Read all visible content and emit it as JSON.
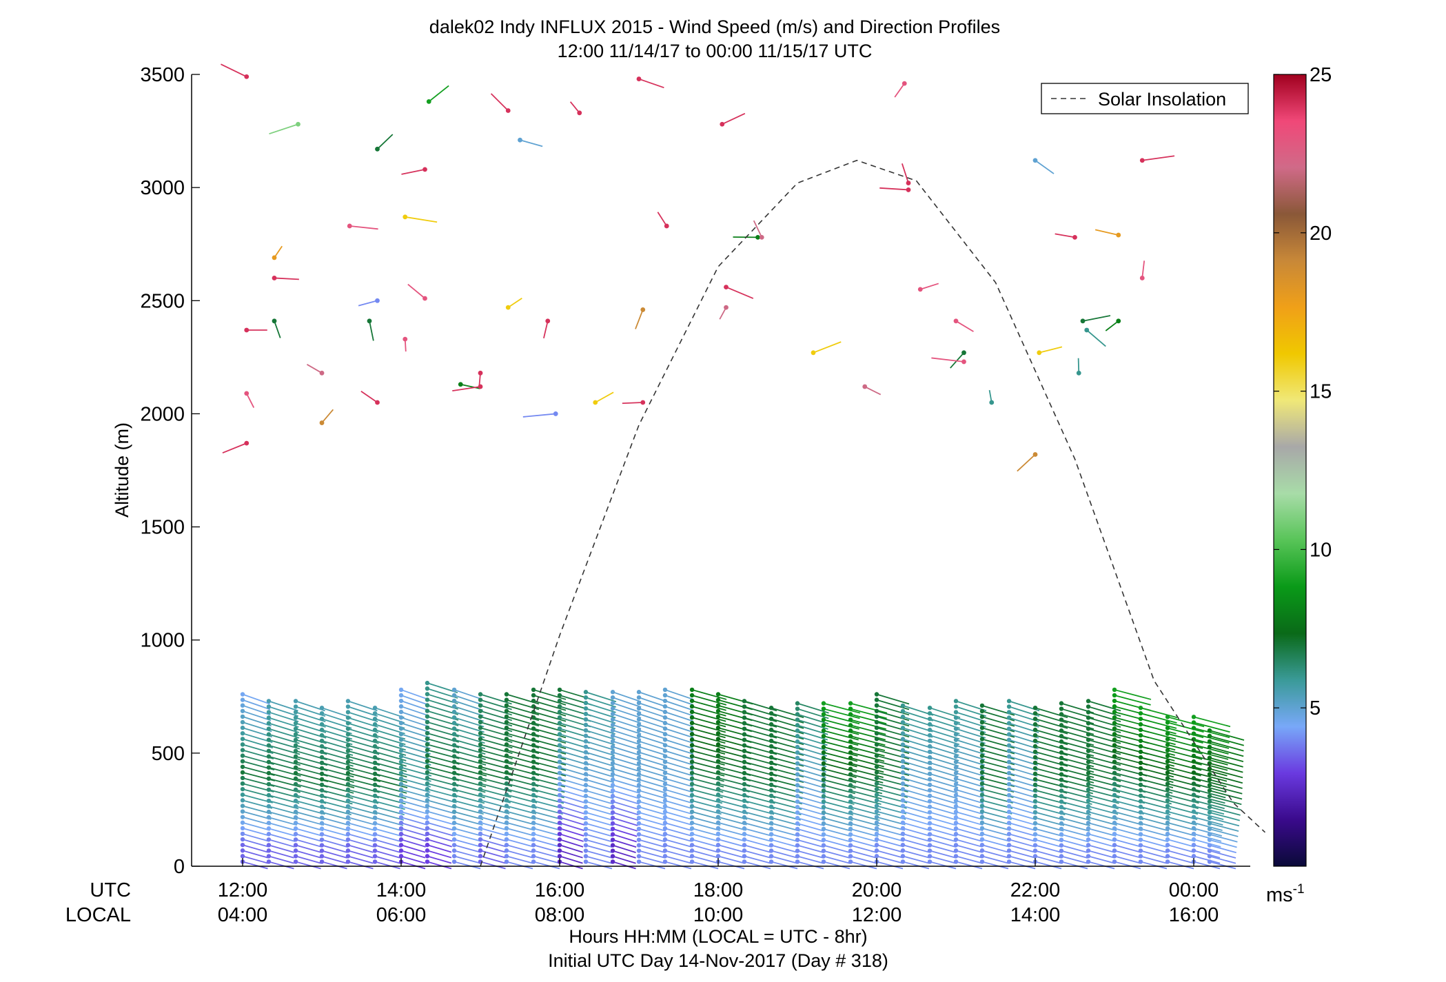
{
  "chart_data": {
    "type": "scatter",
    "title": "dalek02 Indy INFLUX 2015 - Wind Speed (m/s) and Direction Profiles",
    "subtitle": "12:00 11/14/17 to 00:00 11/15/17  UTC",
    "ylabel": "Altitude (m)",
    "xlabel": "Hours HH:MM  (LOCAL = UTC - 8hr)",
    "xlabel2": "Initial UTC Day 14-Nov-2017 (Day # 318)",
    "xaxis_row_labels": [
      "UTC",
      "LOCAL"
    ],
    "x_ticks_utc": [
      "12:00",
      "14:00",
      "16:00",
      "18:00",
      "20:00",
      "22:00",
      "00:00"
    ],
    "x_ticks_local": [
      "04:00",
      "06:00",
      "08:00",
      "10:00",
      "12:00",
      "14:00",
      "16:00"
    ],
    "ylim": [
      0,
      3500
    ],
    "y_ticks": [
      0,
      500,
      1000,
      1500,
      2000,
      2500,
      3000,
      3500
    ],
    "legend": {
      "label": "Solar Insolation",
      "placement": "top-right"
    },
    "colorbar": {
      "ticks": [
        5,
        10,
        15,
        20,
        25
      ],
      "range": [
        0,
        25
      ],
      "unit_label": "ms",
      "unit_exp": "-1",
      "colors": [
        "#0a0a38",
        "#3a0a8c",
        "#6a3ae0",
        "#78a8f8",
        "#3a9a98",
        "#0a6a18",
        "#0a9a18",
        "#58c458",
        "#a8dca8",
        "#a8a8a8",
        "#f0e878",
        "#f0c800",
        "#f0a018",
        "#c88838",
        "#8a5838",
        "#d06a88",
        "#f04878",
        "#a0001e"
      ]
    },
    "solar_insolation": {
      "hours_after_start": [
        3.0,
        4.0,
        5.0,
        6.0,
        7.0,
        7.75,
        8.5,
        9.5,
        10.5,
        11.5,
        12.5,
        12.9
      ],
      "altitude_equiv_m": [
        0,
        1020,
        1950,
        2650,
        3020,
        3120,
        3030,
        2580,
        1800,
        820,
        280,
        150
      ]
    },
    "profiles_low": {
      "hours_after_start": [
        0.0,
        0.33,
        0.67,
        1.0,
        1.33,
        1.67,
        2.0,
        2.33,
        2.67,
        3.0,
        3.33,
        3.67,
        4.0,
        4.33,
        4.67,
        5.0,
        5.33,
        5.67,
        6.0,
        6.33,
        6.67,
        7.0,
        7.33,
        7.67,
        8.0,
        8.33,
        8.67,
        9.0,
        9.33,
        9.67,
        10.0,
        10.33,
        10.67,
        11.0,
        11.33,
        11.67,
        12.0,
        12.2
      ],
      "top_altitude_m": [
        760,
        730,
        730,
        700,
        730,
        700,
        780,
        810,
        780,
        760,
        760,
        780,
        780,
        770,
        770,
        770,
        780,
        780,
        760,
        730,
        700,
        720,
        720,
        720,
        760,
        710,
        700,
        730,
        710,
        730,
        700,
        720,
        730,
        780,
        700,
        660,
        660,
        600
      ],
      "speed_top_ms": [
        4.5,
        5.5,
        5.5,
        5.5,
        5.5,
        5.5,
        4.5,
        6,
        5,
        6.5,
        7,
        7,
        7,
        6,
        5,
        5,
        5,
        8,
        8,
        7,
        7,
        6.5,
        9,
        9,
        7,
        6,
        6,
        6,
        7,
        6,
        7,
        7,
        7,
        9,
        9,
        9,
        9,
        8
      ],
      "speed_mid_ms": [
        7,
        7,
        7,
        7,
        7,
        7,
        6,
        7,
        7,
        7,
        7,
        7,
        5,
        5,
        5,
        5,
        5,
        7,
        7,
        7,
        7,
        5,
        7,
        7,
        7,
        5,
        5,
        5,
        7,
        5,
        7,
        7,
        7,
        7,
        7,
        7,
        7,
        7
      ],
      "speed_bottom_ms": [
        3.5,
        3.5,
        3.5,
        3.5,
        3.5,
        3.5,
        3,
        3,
        4,
        3.5,
        4,
        4,
        2.5,
        4,
        2.5,
        4,
        4,
        4,
        4,
        4,
        4,
        4,
        4,
        4,
        4,
        4,
        4,
        4,
        4,
        4,
        4,
        4,
        4,
        4,
        4,
        4,
        4,
        4
      ]
    },
    "profiles_high_points": {
      "hours_after_start": [
        0.05,
        0.05,
        0.05,
        0.05,
        0.4,
        0.4,
        0.4,
        0.7,
        1.0,
        1.0,
        1.35,
        1.6,
        1.7,
        1.7,
        1.7,
        2.05,
        2.05,
        2.3,
        2.3,
        2.35,
        2.75,
        3.0,
        3.0,
        3.35,
        3.35,
        3.5,
        3.85,
        3.95,
        4.25,
        4.45,
        5.0,
        5.05,
        5.05,
        5.35,
        6.05,
        6.1,
        6.1,
        6.5,
        6.55,
        7.2,
        7.85,
        8.35,
        8.4,
        8.4,
        8.55,
        9.0,
        9.1,
        9.1,
        9.45,
        10.05,
        10.0,
        10.0,
        10.5,
        10.55,
        10.6,
        10.65,
        11.05,
        11.05,
        11.35,
        11.35
      ],
      "altitude_m": [
        2370,
        2090,
        1870,
        3490,
        2690,
        2600,
        2410,
        3280,
        2180,
        1960,
        2830,
        2410,
        2500,
        2050,
        3170,
        2870,
        2330,
        3080,
        2510,
        3380,
        2130,
        2180,
        2120,
        3340,
        2470,
        3210,
        2410,
        2000,
        3330,
        2050,
        3480,
        2460,
        2050,
        2830,
        3280,
        2560,
        2470,
        2780,
        2780,
        2270,
        2120,
        3460,
        2990,
        3020,
        2550,
        2410,
        2270,
        2230,
        2050,
        2270,
        3120,
        1820,
        2780,
        2180,
        2410,
        2370,
        2410,
        2790,
        2600,
        3120
      ],
      "speed_ms": [
        24,
        23,
        24,
        24,
        18,
        24,
        7,
        11,
        22,
        19,
        23,
        7,
        4,
        24,
        7,
        16,
        23,
        24,
        23,
        9,
        8,
        24,
        24,
        24,
        16,
        5,
        24,
        4,
        24,
        16,
        24,
        19,
        24,
        24,
        24,
        24,
        22,
        8,
        22,
        16,
        22,
        23,
        24,
        24,
        23,
        23,
        7,
        23,
        6,
        16,
        5,
        19,
        24,
        6,
        7,
        6,
        8,
        18,
        23,
        24
      ]
    }
  }
}
